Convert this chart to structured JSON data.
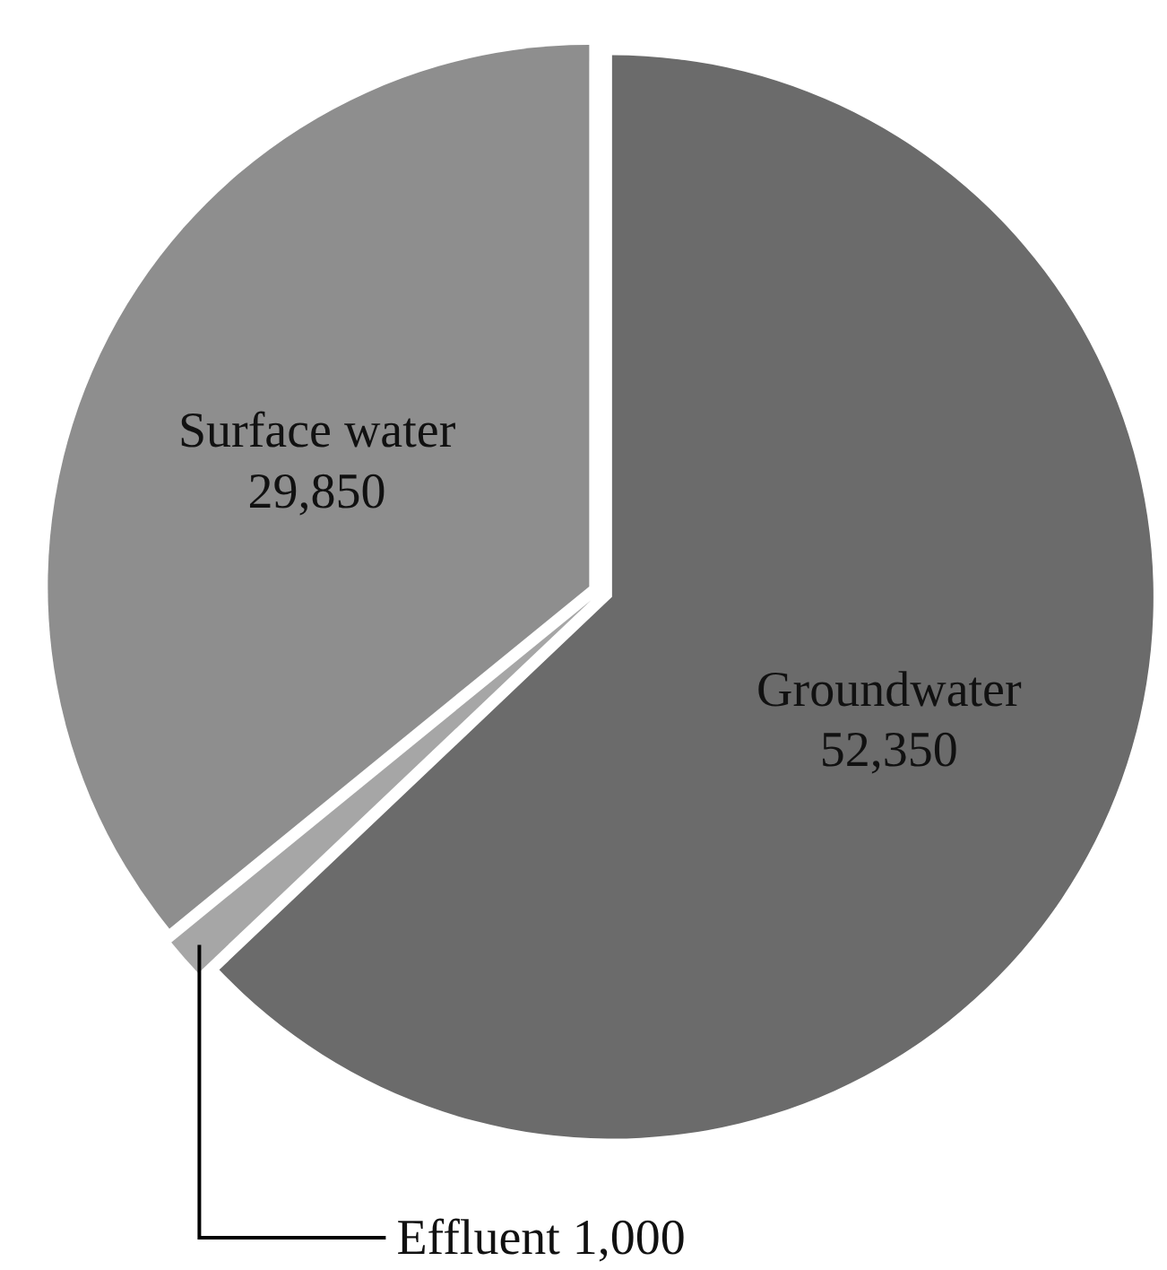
{
  "chart_data": {
    "type": "pie",
    "categories": [
      "Groundwater",
      "Effluent",
      "Surface water"
    ],
    "values": [
      52350,
      1000,
      29850
    ],
    "value_labels": [
      "52,350",
      "1,000",
      "29,850"
    ],
    "colors": [
      "#6b6b6b",
      "#a6a6a6",
      "#8e8e8e"
    ],
    "legend": false
  }
}
